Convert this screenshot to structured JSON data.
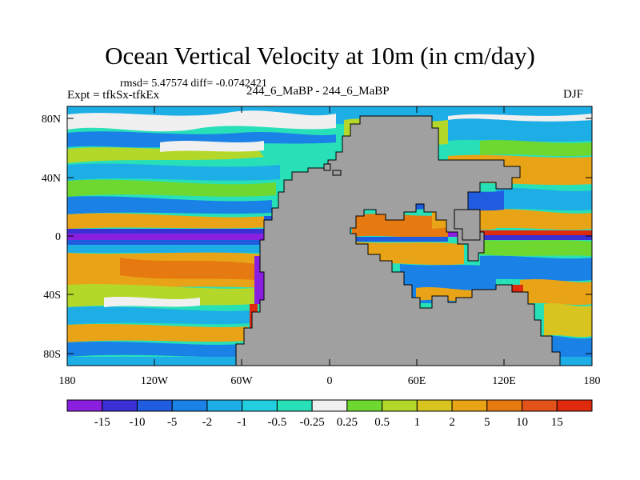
{
  "title": "Ocean Vertical Velocity at 10m (in cm/day)",
  "stats": "rmsd= 5.47574 diff= -0.0742421",
  "expt_label": "Expt = tfkSx-tfkEx",
  "case_label": "244_6_MaBP - 244_6_MaBP",
  "season": "DJF",
  "y_ticks": [
    "80N",
    "40N",
    "0",
    "40S",
    "80S"
  ],
  "x_ticks": [
    "180",
    "120W",
    "60W",
    "0",
    "60E",
    "120E",
    "180"
  ],
  "colorbar": {
    "labels": [
      "-15",
      "-10",
      "-5",
      "-2",
      "-1",
      "-0.5",
      "-0.25",
      "0.25",
      "0.5",
      "1",
      "2",
      "5",
      "10",
      "15"
    ],
    "colors": [
      "#8a1fe0",
      "#3b2fd6",
      "#1f5ce0",
      "#1a82e6",
      "#1eaee6",
      "#22cfe0",
      "#28e0b8",
      "#f0f0f0",
      "#6ed830",
      "#b4d82a",
      "#d8c41e",
      "#e8a416",
      "#e67a10",
      "#e2521a",
      "#e02a0e"
    ]
  },
  "colors": {
    "land": "#a0a0a0",
    "border": "#000000"
  }
}
